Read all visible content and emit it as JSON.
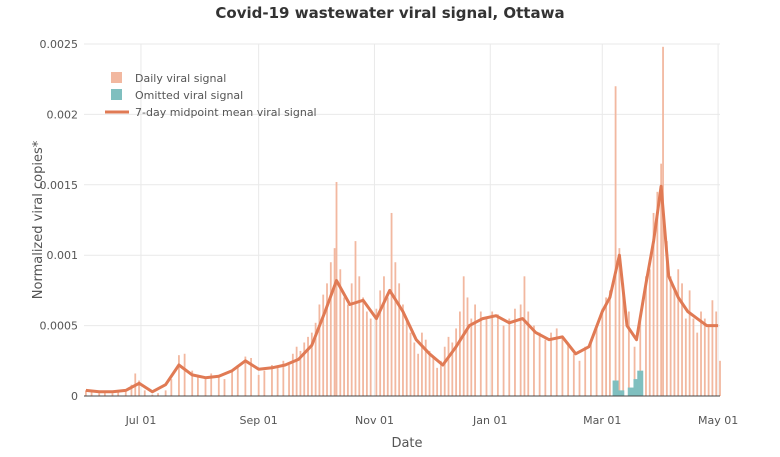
{
  "colors": {
    "daily": "#f2b8a0",
    "omitted": "#7fbfbf",
    "mean_line": "#e07a54",
    "grid": "#e9e9e9",
    "axis_text": "#555555",
    "title_text": "#333333"
  },
  "chart_data": {
    "type": "bar",
    "title": "Covid-19 wastewater viral signal, Ottawa",
    "xlabel": "Date",
    "ylabel": "Normalized viral copies*",
    "xlim": [
      "2020-06-01",
      "2021-05-02"
    ],
    "ylim": [
      0,
      0.0025
    ],
    "grid": true,
    "legend_position": "top-left",
    "y_ticks": [
      "0",
      "0.0005",
      "0.001",
      "0.0015",
      "0.002",
      "0.0025"
    ],
    "x_ticks": [
      {
        "label": "Jul 01",
        "date": "2020-07-01"
      },
      {
        "label": "Sep 01",
        "date": "2020-09-01"
      },
      {
        "label": "Nov 01",
        "date": "2020-11-01"
      },
      {
        "label": "Jan 01",
        "date": "2021-01-01"
      },
      {
        "label": "Mar 01",
        "date": "2021-03-01"
      },
      {
        "label": "May 01",
        "date": "2021-05-01"
      }
    ],
    "legend": [
      {
        "label": "Daily viral signal",
        "kind": "bar",
        "color_key": "daily"
      },
      {
        "label": "Omitted viral signal",
        "kind": "bar",
        "color_key": "omitted"
      },
      {
        "label": "7-day midpoint mean viral signal",
        "kind": "line",
        "color_key": "mean_line"
      }
    ],
    "series": [
      {
        "name": "Daily viral signal",
        "type": "bar",
        "points": [
          [
            "2020-06-02",
            4e-05
          ],
          [
            "2020-06-05",
            3e-05
          ],
          [
            "2020-06-09",
            2e-05
          ],
          [
            "2020-06-12",
            3e-05
          ],
          [
            "2020-06-16",
            2e-05
          ],
          [
            "2020-06-19",
            4e-05
          ],
          [
            "2020-06-23",
            3e-05
          ],
          [
            "2020-06-26",
            8e-05
          ],
          [
            "2020-06-28",
            0.00016
          ],
          [
            "2020-06-30",
            0.00011
          ],
          [
            "2020-07-03",
            4e-05
          ],
          [
            "2020-07-07",
            1e-05
          ],
          [
            "2020-07-10",
            2e-05
          ],
          [
            "2020-07-14",
            4e-05
          ],
          [
            "2020-07-17",
            0.00012
          ],
          [
            "2020-07-21",
            0.00029
          ],
          [
            "2020-07-24",
            0.0003
          ],
          [
            "2020-07-28",
            0.00018
          ],
          [
            "2020-07-31",
            0.00015
          ],
          [
            "2020-08-04",
            0.00012
          ],
          [
            "2020-08-07",
            0.00016
          ],
          [
            "2020-08-11",
            0.00015
          ],
          [
            "2020-08-14",
            0.00012
          ],
          [
            "2020-08-18",
            0.00018
          ],
          [
            "2020-08-21",
            0.00022
          ],
          [
            "2020-08-25",
            0.00028
          ],
          [
            "2020-08-28",
            0.00027
          ],
          [
            "2020-09-01",
            0.00015
          ],
          [
            "2020-09-04",
            0.00018
          ],
          [
            "2020-09-08",
            0.00022
          ],
          [
            "2020-09-11",
            0.0002
          ],
          [
            "2020-09-14",
            0.00025
          ],
          [
            "2020-09-17",
            0.00022
          ],
          [
            "2020-09-19",
            0.0003
          ],
          [
            "2020-09-21",
            0.00035
          ],
          [
            "2020-09-23",
            0.00032
          ],
          [
            "2020-09-25",
            0.00038
          ],
          [
            "2020-09-27",
            0.00042
          ],
          [
            "2020-09-29",
            0.00045
          ],
          [
            "2020-10-01",
            0.00052
          ],
          [
            "2020-10-03",
            0.00065
          ],
          [
            "2020-10-05",
            0.00072
          ],
          [
            "2020-10-07",
            0.0008
          ],
          [
            "2020-10-09",
            0.00095
          ],
          [
            "2020-10-11",
            0.00105
          ],
          [
            "2020-10-12",
            0.00152
          ],
          [
            "2020-10-14",
            0.0009
          ],
          [
            "2020-10-16",
            0.0007
          ],
          [
            "2020-10-18",
            0.00065
          ],
          [
            "2020-10-20",
            0.0008
          ],
          [
            "2020-10-22",
            0.0011
          ],
          [
            "2020-10-24",
            0.00085
          ],
          [
            "2020-10-26",
            0.0007
          ],
          [
            "2020-10-28",
            0.0006
          ],
          [
            "2020-10-30",
            0.00055
          ],
          [
            "2020-11-02",
            0.00062
          ],
          [
            "2020-11-04",
            0.00075
          ],
          [
            "2020-11-06",
            0.00085
          ],
          [
            "2020-11-08",
            0.0007
          ],
          [
            "2020-11-10",
            0.0013
          ],
          [
            "2020-11-12",
            0.00095
          ],
          [
            "2020-11-14",
            0.0008
          ],
          [
            "2020-11-16",
            0.00065
          ],
          [
            "2020-11-18",
            0.00055
          ],
          [
            "2020-11-20",
            0.00045
          ],
          [
            "2020-11-22",
            0.00038
          ],
          [
            "2020-11-24",
            0.0003
          ],
          [
            "2020-11-26",
            0.00045
          ],
          [
            "2020-11-28",
            0.0004
          ],
          [
            "2020-11-30",
            0.00032
          ],
          [
            "2020-12-02",
            0.00028
          ],
          [
            "2020-12-04",
            0.0002
          ],
          [
            "2020-12-06",
            0.00025
          ],
          [
            "2020-12-08",
            0.00035
          ],
          [
            "2020-12-10",
            0.00042
          ],
          [
            "2020-12-12",
            0.00038
          ],
          [
            "2020-12-14",
            0.00048
          ],
          [
            "2020-12-16",
            0.0006
          ],
          [
            "2020-12-18",
            0.00085
          ],
          [
            "2020-12-20",
            0.0007
          ],
          [
            "2020-12-22",
            0.00055
          ],
          [
            "2020-12-24",
            0.00065
          ],
          [
            "2020-12-27",
            0.0006
          ],
          [
            "2020-12-30",
            0.00055
          ],
          [
            "2021-01-02",
            0.0006
          ],
          [
            "2021-01-05",
            0.00058
          ],
          [
            "2021-01-08",
            0.0005
          ],
          [
            "2021-01-11",
            0.00055
          ],
          [
            "2021-01-14",
            0.00062
          ],
          [
            "2021-01-17",
            0.00065
          ],
          [
            "2021-01-19",
            0.00085
          ],
          [
            "2021-01-21",
            0.0006
          ],
          [
            "2021-01-24",
            0.0005
          ],
          [
            "2021-01-27",
            0.00045
          ],
          [
            "2021-01-30",
            0.0004
          ],
          [
            "2021-02-02",
            0.00045
          ],
          [
            "2021-02-05",
            0.00048
          ],
          [
            "2021-02-08",
            0.00042
          ],
          [
            "2021-02-11",
            0.00038
          ],
          [
            "2021-02-14",
            0.0003
          ],
          [
            "2021-02-17",
            0.00025
          ],
          [
            "2021-02-20",
            0.00035
          ],
          [
            "2021-02-23",
            0.0004
          ],
          [
            "2021-02-26",
            0.0005
          ],
          [
            "2021-03-01",
            0.00062
          ],
          [
            "2021-03-03",
            0.0007
          ],
          [
            "2021-03-05",
            0.00075
          ],
          [
            "2021-03-08",
            0.0022
          ],
          [
            "2021-03-10",
            0.00105
          ],
          [
            "2021-03-12",
            0.0008
          ],
          [
            "2021-03-15",
            0.0006
          ],
          [
            "2021-03-18",
            0.00035
          ],
          [
            "2021-03-21",
            0.00055
          ],
          [
            "2021-03-24",
            0.00085
          ],
          [
            "2021-03-26",
            0.0009
          ],
          [
            "2021-03-28",
            0.0013
          ],
          [
            "2021-03-30",
            0.00145
          ],
          [
            "2021-04-01",
            0.00165
          ],
          [
            "2021-04-02",
            0.00248
          ],
          [
            "2021-04-04",
            0.0011
          ],
          [
            "2021-04-06",
            0.00085
          ],
          [
            "2021-04-08",
            0.00075
          ],
          [
            "2021-04-10",
            0.0009
          ],
          [
            "2021-04-12",
            0.0008
          ],
          [
            "2021-04-14",
            0.00055
          ],
          [
            "2021-04-16",
            0.00075
          ],
          [
            "2021-04-18",
            0.00055
          ],
          [
            "2021-04-20",
            0.00045
          ],
          [
            "2021-04-22",
            0.0006
          ],
          [
            "2021-04-24",
            0.00055
          ],
          [
            "2021-04-26",
            0.0005
          ],
          [
            "2021-04-28",
            0.00068
          ],
          [
            "2021-04-30",
            0.0006
          ],
          [
            "2021-05-02",
            0.00025
          ]
        ]
      },
      {
        "name": "Omitted viral signal",
        "type": "bar",
        "points": [
          [
            "2021-03-08",
            0.00011
          ],
          [
            "2021-03-11",
            4e-05
          ],
          [
            "2021-03-16",
            6e-05
          ],
          [
            "2021-03-19",
            0.00012
          ],
          [
            "2021-03-21",
            0.00018
          ]
        ]
      },
      {
        "name": "7-day midpoint mean viral signal",
        "type": "line",
        "points": [
          [
            "2020-06-02",
            4e-05
          ],
          [
            "2020-06-09",
            3e-05
          ],
          [
            "2020-06-16",
            3e-05
          ],
          [
            "2020-06-23",
            4e-05
          ],
          [
            "2020-06-30",
            9e-05
          ],
          [
            "2020-07-07",
            3e-05
          ],
          [
            "2020-07-14",
            8e-05
          ],
          [
            "2020-07-21",
            0.00022
          ],
          [
            "2020-07-28",
            0.00015
          ],
          [
            "2020-08-04",
            0.00013
          ],
          [
            "2020-08-11",
            0.00014
          ],
          [
            "2020-08-18",
            0.00018
          ],
          [
            "2020-08-25",
            0.00025
          ],
          [
            "2020-09-01",
            0.00019
          ],
          [
            "2020-09-08",
            0.0002
          ],
          [
            "2020-09-15",
            0.00022
          ],
          [
            "2020-09-22",
            0.00026
          ],
          [
            "2020-09-29",
            0.00036
          ],
          [
            "2020-10-06",
            0.0006
          ],
          [
            "2020-10-12",
            0.00082
          ],
          [
            "2020-10-19",
            0.00065
          ],
          [
            "2020-10-26",
            0.00068
          ],
          [
            "2020-11-02",
            0.00055
          ],
          [
            "2020-11-09",
            0.00075
          ],
          [
            "2020-11-16",
            0.0006
          ],
          [
            "2020-11-23",
            0.0004
          ],
          [
            "2020-11-30",
            0.0003
          ],
          [
            "2020-12-07",
            0.00022
          ],
          [
            "2020-12-14",
            0.00035
          ],
          [
            "2020-12-21",
            0.0005
          ],
          [
            "2020-12-28",
            0.00055
          ],
          [
            "2021-01-04",
            0.00057
          ],
          [
            "2021-01-11",
            0.00052
          ],
          [
            "2021-01-18",
            0.00055
          ],
          [
            "2021-01-25",
            0.00045
          ],
          [
            "2021-02-01",
            0.0004
          ],
          [
            "2021-02-08",
            0.00042
          ],
          [
            "2021-02-15",
            0.0003
          ],
          [
            "2021-02-22",
            0.00035
          ],
          [
            "2021-03-01",
            0.0006
          ],
          [
            "2021-03-05",
            0.0007
          ],
          [
            "2021-03-10",
            0.001
          ],
          [
            "2021-03-14",
            0.0005
          ],
          [
            "2021-03-19",
            0.0004
          ],
          [
            "2021-03-24",
            0.0008
          ],
          [
            "2021-03-28",
            0.0011
          ],
          [
            "2021-04-01",
            0.00149
          ],
          [
            "2021-04-05",
            0.00085
          ],
          [
            "2021-04-10",
            0.0007
          ],
          [
            "2021-04-15",
            0.0006
          ],
          [
            "2021-04-20",
            0.00055
          ],
          [
            "2021-04-25",
            0.0005
          ],
          [
            "2021-05-01",
            0.0005
          ]
        ]
      }
    ]
  }
}
